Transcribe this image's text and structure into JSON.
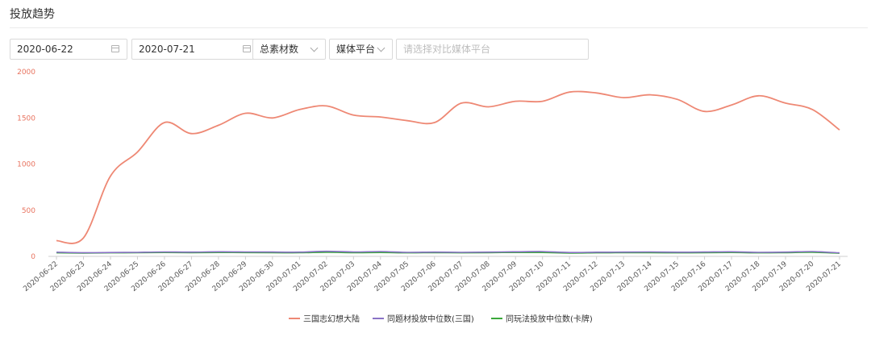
{
  "header": {
    "title": "投放趋势"
  },
  "filters": {
    "start_date": "2020-06-22",
    "end_date": "2020-07-21",
    "metric_select": "总素材数",
    "platform_select": "媒体平台",
    "compare_placeholder": "请选择对比媒体平台"
  },
  "colors": {
    "series_main": "#ee8874",
    "series_topic": "#8a72c6",
    "series_gameplay": "#3aa83a",
    "y_tick": "#e8735f"
  },
  "icons": {
    "calendar": "calendar-icon",
    "chevron": "chevron-down-icon"
  },
  "chart_data": {
    "type": "line",
    "title": "",
    "xlabel": "",
    "ylabel": "",
    "ylim": [
      0,
      2000
    ],
    "yticks": [
      0,
      500,
      1000,
      1500,
      2000
    ],
    "legend_position": "bottom",
    "grid": false,
    "x": [
      "2020-06-22",
      "2020-06-23",
      "2020-06-24",
      "2020-06-25",
      "2020-06-26",
      "2020-06-27",
      "2020-06-28",
      "2020-06-29",
      "2020-06-30",
      "2020-07-01",
      "2020-07-02",
      "2020-07-03",
      "2020-07-04",
      "2020-07-05",
      "2020-07-06",
      "2020-07-07",
      "2020-07-08",
      "2020-07-09",
      "2020-07-10",
      "2020-07-11",
      "2020-07-12",
      "2020-07-13",
      "2020-07-14",
      "2020-07-15",
      "2020-07-16",
      "2020-07-17",
      "2020-07-18",
      "2020-07-19",
      "2020-07-20",
      "2020-07-21"
    ],
    "series": [
      {
        "name": "三国志幻想大陆",
        "color": "#ee8874",
        "values": [
          170,
          200,
          870,
          1130,
          1450,
          1330,
          1420,
          1550,
          1500,
          1590,
          1630,
          1530,
          1510,
          1470,
          1450,
          1660,
          1620,
          1680,
          1680,
          1780,
          1770,
          1720,
          1750,
          1700,
          1570,
          1640,
          1740,
          1660,
          1590,
          1370
        ]
      },
      {
        "name": "同题材投放中位数(三国)",
        "color": "#8a72c6",
        "values": [
          45,
          40,
          42,
          44,
          48,
          46,
          50,
          48,
          47,
          46,
          55,
          48,
          52,
          44,
          46,
          44,
          46,
          50,
          52,
          42,
          45,
          46,
          48,
          45,
          47,
          50,
          44,
          46,
          52,
          38
        ]
      },
      {
        "name": "同玩法投放中位数(卡牌)",
        "color": "#3aa83a",
        "values": [
          38,
          36,
          38,
          40,
          42,
          40,
          42,
          41,
          40,
          39,
          44,
          40,
          42,
          38,
          40,
          38,
          40,
          42,
          42,
          36,
          38,
          40,
          40,
          38,
          40,
          42,
          38,
          40,
          44,
          34
        ]
      }
    ]
  }
}
